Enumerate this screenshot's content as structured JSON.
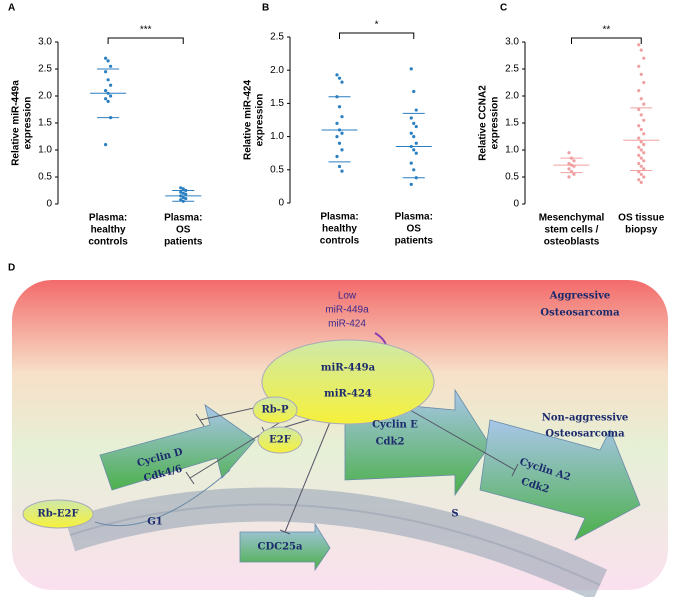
{
  "chart_data": [
    {
      "type": "strip",
      "panel_label": "A",
      "ylabel": [
        "Relative miR-449a",
        "expression"
      ],
      "categories": [
        [
          "Plasma:",
          "healthy",
          "controls"
        ],
        [
          "Plasma:",
          "OS",
          "patients"
        ]
      ],
      "points": [
        [
          2.7,
          2.65,
          2.55,
          2.45,
          2.3,
          2.2,
          2.1,
          2.05,
          2.0,
          1.95,
          1.9,
          1.6,
          1.1
        ],
        [
          0.3,
          0.28,
          0.25,
          0.22,
          0.2,
          0.18,
          0.15,
          0.12,
          0.1,
          0.08,
          0.05
        ]
      ],
      "means": [
        2.05,
        0.15
      ],
      "sd_ranges": [
        [
          1.6,
          2.5
        ],
        [
          0.05,
          0.25
        ]
      ],
      "color": "#2a7fc1",
      "significance": "***",
      "ylim": [
        0,
        3.0
      ],
      "yticks": [
        0,
        0.5,
        {
          "value": 1,
          "label": "1.0"
        },
        1.5,
        {
          "value": 2,
          "label": "2.0"
        },
        2.5,
        {
          "value": 3,
          "label": "3.0"
        }
      ]
    },
    {
      "type": "strip",
      "panel_label": "B",
      "ylabel": [
        "Relative miR-424",
        "expression"
      ],
      "categories": [
        [
          "Plasma:",
          "healthy",
          "controls"
        ],
        [
          "Plasma:",
          "OS",
          "patients"
        ]
      ],
      "points": [
        [
          1.93,
          1.88,
          1.82,
          1.6,
          1.45,
          1.3,
          1.2,
          1.1,
          1.05,
          1.0,
          0.9,
          0.8,
          0.7,
          0.55,
          0.48
        ],
        [
          2.02,
          1.68,
          1.4,
          1.28,
          1.2,
          1.15,
          1.05,
          1.0,
          0.9,
          0.85,
          0.8,
          0.75,
          0.6,
          0.5,
          0.38,
          0.28
        ]
      ],
      "means": [
        1.1,
        0.85
      ],
      "sd_ranges": [
        [
          0.62,
          1.6
        ],
        [
          0.38,
          1.35
        ]
      ],
      "color": "#2a7fc1",
      "significance": "*",
      "ylim": [
        0,
        2.5
      ],
      "yticks": [
        0,
        0.5,
        {
          "value": 1,
          "label": "1.0"
        },
        1.5,
        {
          "value": 2,
          "label": "2.0"
        },
        2.5
      ]
    },
    {
      "type": "strip",
      "panel_label": "C",
      "ylabel": [
        "Relative CCNA2",
        "expression"
      ],
      "categories": [
        [
          "Mesenchymal",
          "stem cells /",
          "osteoblasts"
        ],
        [
          "OS  tissue",
          "biopsy"
        ]
      ],
      "points": [
        [
          0.95,
          0.85,
          0.8,
          0.75,
          0.72,
          0.7,
          0.65,
          0.6,
          0.55,
          0.5
        ],
        [
          2.95,
          2.85,
          2.7,
          2.55,
          2.4,
          2.25,
          2.1,
          1.95,
          1.85,
          1.75,
          1.65,
          1.55,
          1.45,
          1.38,
          1.3,
          1.22,
          1.15,
          1.1,
          1.05,
          1.0,
          0.95,
          0.9,
          0.85,
          0.8,
          0.75,
          0.7,
          0.65,
          0.6,
          0.55,
          0.5,
          0.45,
          0.4
        ]
      ],
      "means": [
        0.72,
        1.18
      ],
      "sd_ranges": [
        [
          0.58,
          0.85
        ],
        [
          0.62,
          1.78
        ]
      ],
      "color": "#f0a0a0",
      "significance": "**",
      "ylim": [
        0,
        3.0
      ],
      "yticks": [
        0,
        0.5,
        {
          "value": 1,
          "label": "1.0"
        },
        1.5,
        {
          "value": 2,
          "label": "2.0"
        },
        2.5,
        {
          "value": 3,
          "label": "3.0"
        }
      ]
    }
  ],
  "diagram": {
    "panel_label": "D",
    "low": [
      "Low",
      "miR-449a",
      "miR-424"
    ],
    "aggressive": [
      "Aggressive",
      "Osteosarcoma"
    ],
    "center": [
      "miR-449a",
      "miR-424"
    ],
    "non_aggressive": [
      "Non-aggressive",
      "Osteosarcoma"
    ],
    "rb_p": "Rb-P",
    "e2f": "E2F",
    "cyclin_d": [
      "Cyclin D",
      "Cdk4/6"
    ],
    "rb_e2f": "Rb-E2F",
    "g1": "G1",
    "cdc25a": "CDC25a",
    "cyclin_e": [
      "Cyclin E",
      "Cdk2"
    ],
    "s": "S",
    "cyclin_a2": [
      "Cyclin A2",
      "Cdk2"
    ]
  }
}
